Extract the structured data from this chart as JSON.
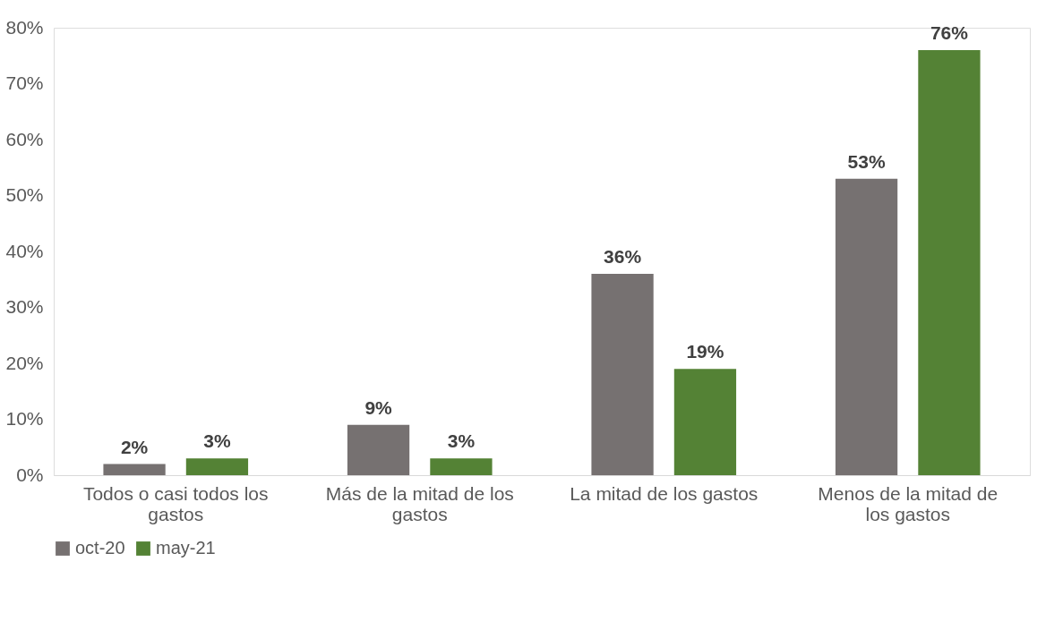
{
  "chart_data": {
    "type": "bar",
    "categories": [
      "Todos o casi todos los gastos",
      "Más de la mitad de los gastos",
      "La mitad de los gastos",
      "Menos de la mitad de los gastos"
    ],
    "series": [
      {
        "name": "oct-20",
        "color": "#767171",
        "values": [
          2,
          9,
          36,
          53
        ],
        "value_labels": [
          "2%",
          "9%",
          "36%",
          "53%"
        ]
      },
      {
        "name": "may-21",
        "color": "#548235",
        "values": [
          3,
          3,
          19,
          76
        ],
        "value_labels": [
          "3%",
          "3%",
          "19%",
          "76%"
        ]
      }
    ],
    "ylim": [
      0,
      80
    ],
    "yticks": [
      {
        "value": 0,
        "label": "0%"
      },
      {
        "value": 10,
        "label": "10%"
      },
      {
        "value": 20,
        "label": "20%"
      },
      {
        "value": 30,
        "label": "30%"
      },
      {
        "value": 40,
        "label": "40%"
      },
      {
        "value": 50,
        "label": "50%"
      },
      {
        "value": 60,
        "label": "60%"
      },
      {
        "value": 70,
        "label": "70%"
      },
      {
        "value": 80,
        "label": "80%"
      }
    ],
    "grid": false,
    "legend": "bottom"
  }
}
